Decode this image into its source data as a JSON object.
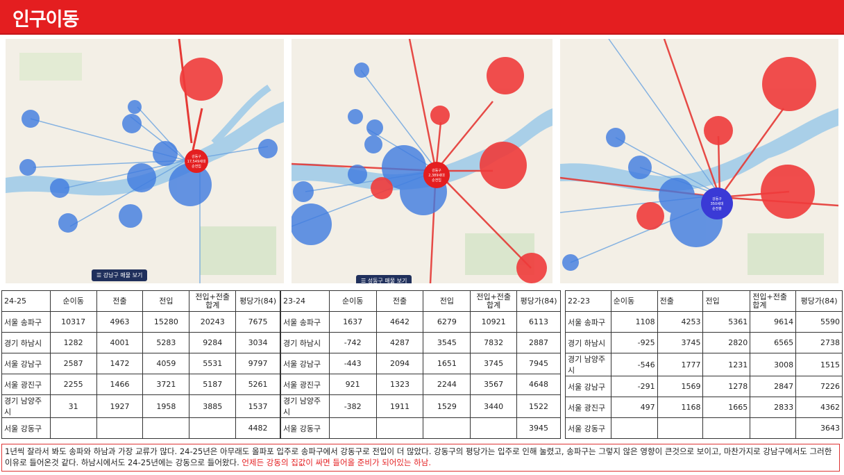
{
  "header": {
    "title": "인구이동"
  },
  "maps": {
    "btn1": "☰ 강남구 매물 보기",
    "btn2": "☰ 성동구 매물 보기",
    "m1": {
      "center": [
        "강동구",
        "17,549세대",
        "순전입"
      ]
    },
    "m2": {
      "center": [
        "강동구",
        "2,389세대",
        "순전입"
      ]
    },
    "m3": {
      "center": [
        "강동구",
        "350세대",
        "순전출"
      ]
    }
  },
  "table1": {
    "headers": [
      "24-25",
      "순이동",
      "전출",
      "전입",
      "전입+전출 합계",
      "평당가(84)"
    ],
    "rows": [
      [
        "서울 송파구",
        "10317",
        "4963",
        "15280",
        "20243",
        "7675"
      ],
      [
        "경기 하남시",
        "1282",
        "4001",
        "5283",
        "9284",
        "3034"
      ],
      [
        "서울 강남구",
        "2587",
        "1472",
        "4059",
        "5531",
        "9797"
      ],
      [
        "서울 광진구",
        "2255",
        "1466",
        "3721",
        "5187",
        "5261"
      ],
      [
        "경기 남양주시",
        "31",
        "1927",
        "1958",
        "3885",
        "1537"
      ],
      [
        "서울 강동구",
        "",
        "",
        "",
        "",
        "4482"
      ]
    ]
  },
  "table2": {
    "headers": [
      "23-24",
      "순이동",
      "전출",
      "전입",
      "전입+전출 합계",
      "평당가(84)"
    ],
    "rows": [
      [
        "서울 송파구",
        "1637",
        "4642",
        "6279",
        "10921",
        "6113"
      ],
      [
        "경기 하남시",
        "-742",
        "4287",
        "3545",
        "7832",
        "2887"
      ],
      [
        "서울 강남구",
        "-443",
        "2094",
        "1651",
        "3745",
        "7945"
      ],
      [
        "서울 광진구",
        "921",
        "1323",
        "2244",
        "3567",
        "4648"
      ],
      [
        "경기 남양주시",
        "-382",
        "1911",
        "1529",
        "3440",
        "1522"
      ],
      [
        "서울 강동구",
        "",
        "",
        "",
        "",
        "3945"
      ]
    ]
  },
  "table3": {
    "headers": [
      "22-23",
      "순이동",
      "전출",
      "전입",
      "전입+전출 합계",
      "평당가(84)"
    ],
    "rows": [
      [
        "서울 송파구",
        "1108",
        "4253",
        "5361",
        "9614",
        "5590"
      ],
      [
        "경기 하남시",
        "-925",
        "3745",
        "2820",
        "6565",
        "2738"
      ],
      [
        "경기 남양주시",
        "-546",
        "1777",
        "1231",
        "3008",
        "1515"
      ],
      [
        "서울 강남구",
        "-291",
        "1569",
        "1278",
        "2847",
        "7226"
      ],
      [
        "서울 광진구",
        "497",
        "1168",
        "1665",
        "2833",
        "4362"
      ],
      [
        "서울 강동구",
        "",
        "",
        "",
        "",
        "3643"
      ]
    ]
  },
  "note": {
    "text": "1년씩 잘라서 봐도 송파와 하남과 가장 교류가 많다. 24-25년은 아무래도 올파포 입주로 송파구에서 강동구로 전입이 더 많았다. 강동구의 평당가는 입주로 인해 눌렸고, 송파구는 그렇지 않은 영향이 큰것으로 보이고, 마찬가지로 강남구에서도 그러한 이유로 들어온것 같다. 하남시에서도 24-25년에는 강동으로 들어왔다. ",
    "highlight": "언제든 강동의 집값이 싸면 들어올 준비가 되어있는 하남."
  }
}
